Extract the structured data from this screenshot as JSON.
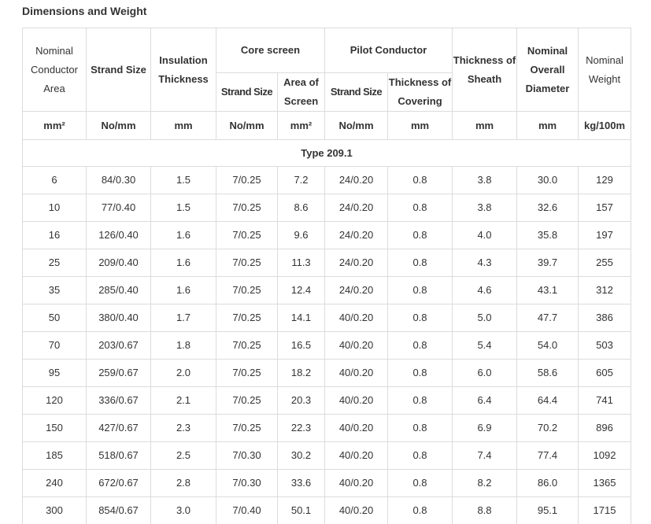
{
  "title": "Dimensions and Weight",
  "headers": {
    "nominal_conductor_area": "Nominal Conductor Area",
    "strand_size": "Strand Size",
    "insulation_thickness": "Insulation Thickness",
    "core_screen": "Core screen",
    "core_strand_size": "Strand Size",
    "area_of_screen": "Area of Screen",
    "pilot_conductor": "Pilot Conductor",
    "pilot_strand_size": "Strand Size",
    "thickness_of_covering": "Thickness of Covering",
    "thickness_of_sheath": "Thickness of Sheath",
    "nominal_overall_diameter": "Nominal Overall Diameter",
    "nominal_weight": "Nominal Weight"
  },
  "units": [
    "mm²",
    "No/mm",
    "mm",
    "No/mm",
    "mm²",
    "No/mm",
    "mm",
    "mm",
    "mm",
    "kg/100m"
  ],
  "type_label": "Type 209.1",
  "rows": [
    [
      "6",
      "84/0.30",
      "1.5",
      "7/0.25",
      "7.2",
      "24/0.20",
      "0.8",
      "3.8",
      "30.0",
      "129"
    ],
    [
      "10",
      "77/0.40",
      "1.5",
      "7/0.25",
      "8.6",
      "24/0.20",
      "0.8",
      "3.8",
      "32.6",
      "157"
    ],
    [
      "16",
      "126/0.40",
      "1.6",
      "7/0.25",
      "9.6",
      "24/0.20",
      "0.8",
      "4.0",
      "35.8",
      "197"
    ],
    [
      "25",
      "209/0.40",
      "1.6",
      "7/0.25",
      "11.3",
      "24/0.20",
      "0.8",
      "4.3",
      "39.7",
      "255"
    ],
    [
      "35",
      "285/0.40",
      "1.6",
      "7/0.25",
      "12.4",
      "24/0.20",
      "0.8",
      "4.6",
      "43.1",
      "312"
    ],
    [
      "50",
      "380/0.40",
      "1.7",
      "7/0.25",
      "14.1",
      "40/0.20",
      "0.8",
      "5.0",
      "47.7",
      "386"
    ],
    [
      "70",
      "203/0.67",
      "1.8",
      "7/0.25",
      "16.5",
      "40/0.20",
      "0.8",
      "5.4",
      "54.0",
      "503"
    ],
    [
      "95",
      "259/0.67",
      "2.0",
      "7/0.25",
      "18.2",
      "40/0.20",
      "0.8",
      "6.0",
      "58.6",
      "605"
    ],
    [
      "120",
      "336/0.67",
      "2.1",
      "7/0.25",
      "20.3",
      "40/0.20",
      "0.8",
      "6.4",
      "64.4",
      "741"
    ],
    [
      "150",
      "427/0.67",
      "2.3",
      "7/0.25",
      "22.3",
      "40/0.20",
      "0.8",
      "6.9",
      "70.2",
      "896"
    ],
    [
      "185",
      "518/0.67",
      "2.5",
      "7/0.30",
      "30.2",
      "40/0.20",
      "0.8",
      "7.4",
      "77.4",
      "1092"
    ],
    [
      "240",
      "672/0.67",
      "2.8",
      "7/0.30",
      "33.6",
      "40/0.20",
      "0.8",
      "8.2",
      "86.0",
      "1365"
    ],
    [
      "300",
      "854/0.67",
      "3.0",
      "7/0.40",
      "50.1",
      "40/0.20",
      "0.8",
      "8.8",
      "95.1",
      "1715"
    ]
  ]
}
